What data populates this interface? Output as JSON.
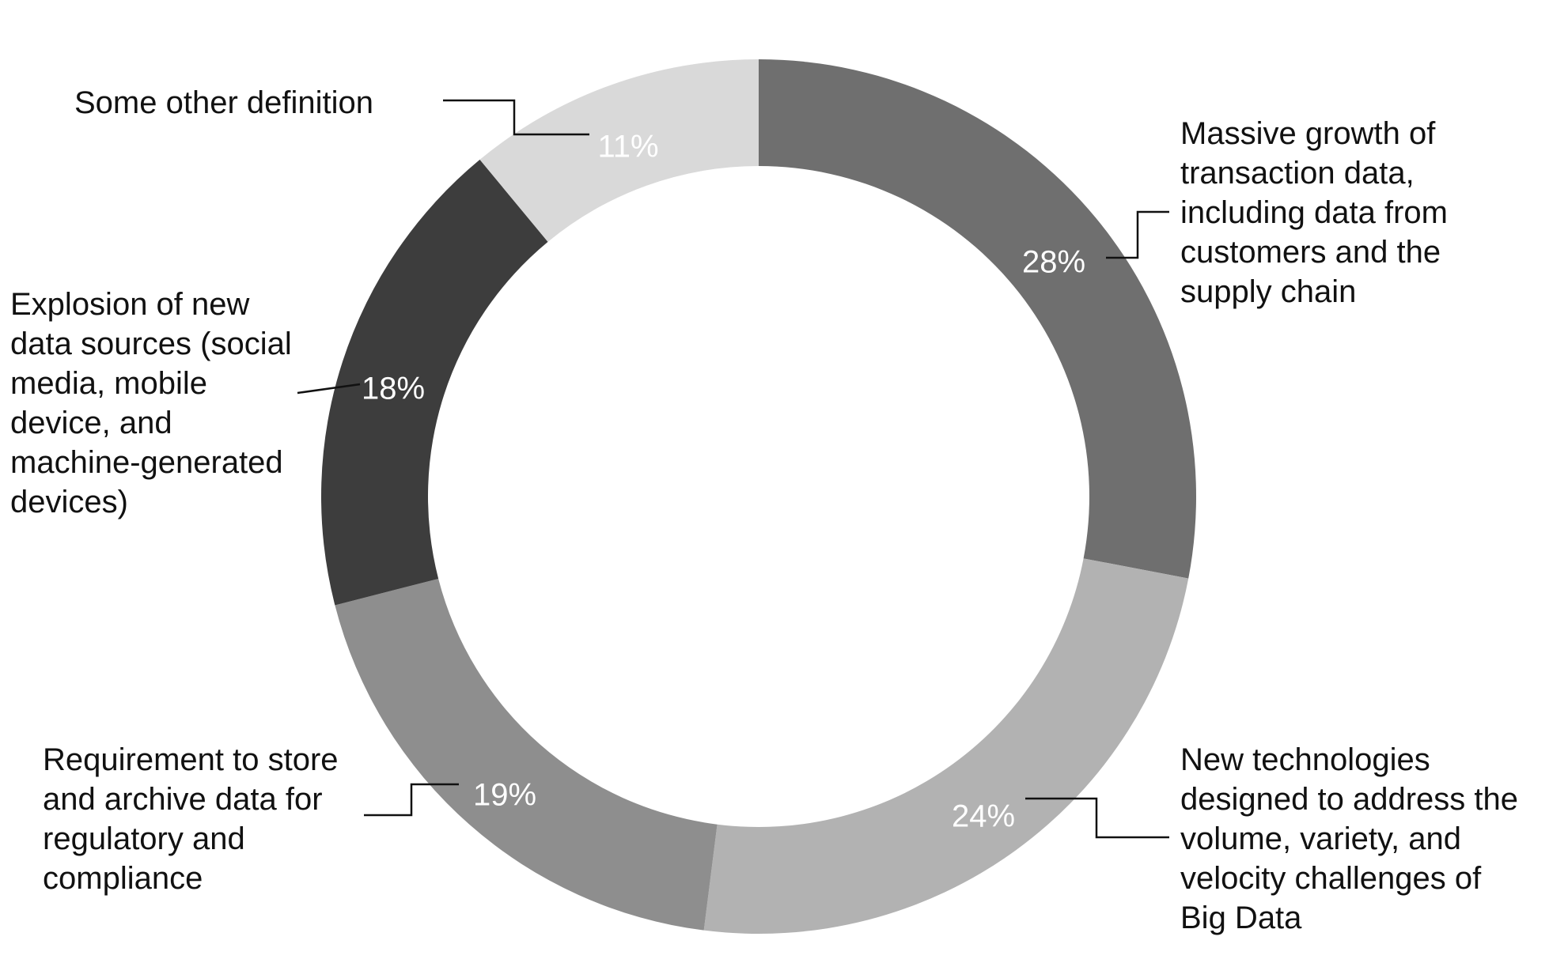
{
  "chart_data": {
    "type": "pie",
    "style": "donut",
    "start_angle_deg": 0,
    "direction": "clockwise",
    "slices": [
      {
        "value": 28,
        "pct_label": "28%",
        "label_lines": [
          "Massive growth of",
          "transaction data,",
          "including data from",
          "customers and the",
          "supply chain"
        ],
        "color": "#6f6f6f"
      },
      {
        "value": 24,
        "pct_label": "24%",
        "label_lines": [
          "New technologies",
          "designed to address the",
          "volume, variety, and",
          "velocity challenges of",
          "Big Data"
        ],
        "color": "#b2b2b2"
      },
      {
        "value": 19,
        "pct_label": "19%",
        "label_lines": [
          "Requirement to store",
          "and archive data for",
          "regulatory and",
          "compliance"
        ],
        "color": "#8e8e8e"
      },
      {
        "value": 18,
        "pct_label": "18%",
        "label_lines": [
          "Explosion of new",
          "data sources (social",
          "media, mobile",
          "device, and",
          "machine-generated",
          "devices)"
        ],
        "color": "#3d3d3d"
      },
      {
        "value": 11,
        "pct_label": "11%",
        "label_lines": [
          "Some other definition"
        ],
        "color": "#d9d9d9"
      }
    ],
    "legend": "none"
  }
}
